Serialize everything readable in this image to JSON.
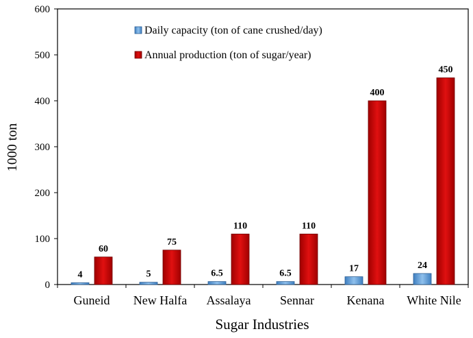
{
  "chart_data": {
    "type": "bar",
    "title": "",
    "xlabel": "Sugar Industries",
    "ylabel": "1000 ton",
    "ylim": [
      0,
      600
    ],
    "yticks": [
      0,
      100,
      200,
      300,
      400,
      500,
      600
    ],
    "grid": false,
    "legend_position": "top-center",
    "categories": [
      "Guneid",
      "New Halfa",
      "Assalaya",
      "Sennar",
      "Kenana",
      "White Nile"
    ],
    "series": [
      {
        "name": "Daily capacity (ton of cane crushed/day)",
        "color": "#5B9BD5",
        "values": [
          4,
          5,
          6.5,
          6.5,
          17,
          24
        ],
        "labels": [
          "4",
          "5",
          "6.5",
          "6.5",
          "17",
          "24"
        ]
      },
      {
        "name": "Annual production (ton of sugar/year)",
        "color": "#C00000",
        "values": [
          60,
          75,
          110,
          110,
          400,
          450
        ],
        "labels": [
          "60",
          "75",
          "110",
          "110",
          "400",
          "450"
        ]
      }
    ]
  }
}
